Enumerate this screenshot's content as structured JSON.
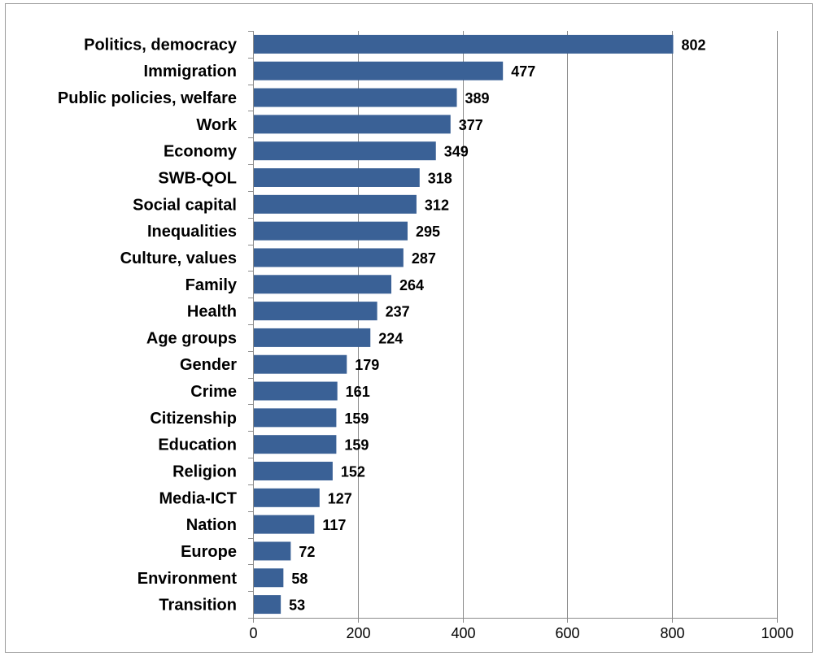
{
  "chart_data": {
    "type": "bar",
    "orientation": "horizontal",
    "title": "",
    "xlabel": "",
    "ylabel": "",
    "categories": [
      "Politics, democracy",
      "Immigration",
      "Public policies, welfare",
      "Work",
      "Economy",
      "SWB-QOL",
      "Social capital",
      "Inequalities",
      "Culture, values",
      "Family",
      "Health",
      "Age groups",
      "Gender",
      "Crime",
      "Citizenship",
      "Education",
      "Religion",
      "Media-ICT",
      "Nation",
      "Europe",
      "Environment",
      "Transition"
    ],
    "values": [
      802,
      477,
      389,
      377,
      349,
      318,
      312,
      295,
      287,
      264,
      237,
      224,
      179,
      161,
      159,
      159,
      152,
      127,
      117,
      72,
      58,
      53
    ],
    "xlim": [
      0,
      1000
    ],
    "xticks": [
      0,
      200,
      400,
      600,
      800,
      1000
    ],
    "grid": "vertical",
    "legend": "none",
    "bar_color": "#3a6196",
    "show_data_labels": true
  }
}
